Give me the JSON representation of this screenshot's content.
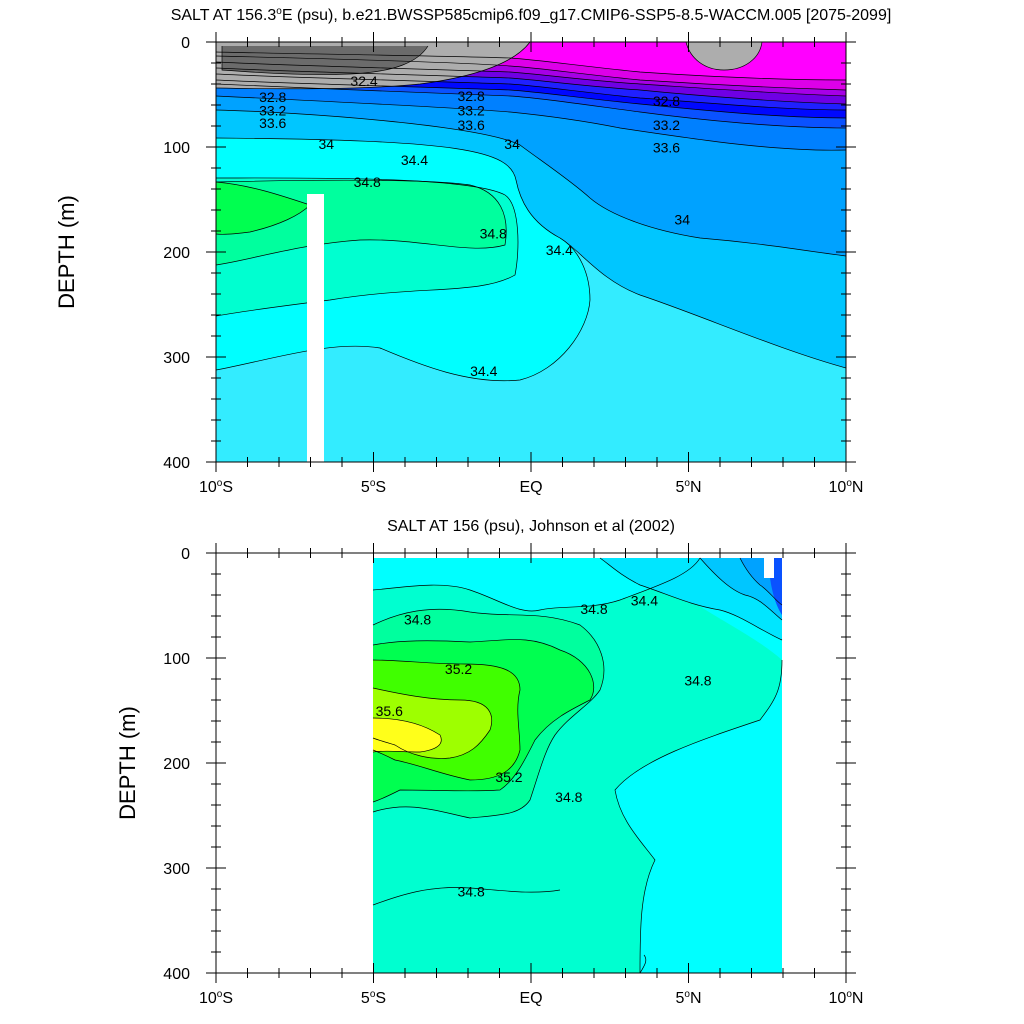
{
  "chart_data": [
    {
      "type": "contour",
      "title": "SALT AT 156.3°E (psu), b.e21.BWSSP585cmip6.f09_g17.CMIP6-SSP5-8.5-WACCM.005 [2075-2099]",
      "title_parts": {
        "pre": "SALT AT 156.3",
        "sup": "o",
        "post": "E (psu), b.e21.BWSSP585cmip6.f09_g17.CMIP6-SSP5-8.5-WACCM.005 [2075-2099]"
      },
      "xlabel": "",
      "ylabel": "DEPTH (m)",
      "xlim": [
        -10,
        10
      ],
      "ylim": [
        400,
        0
      ],
      "x_ticks": [
        {
          "value": -10,
          "pre": "10",
          "sup": "o",
          "post": "S"
        },
        {
          "value": -5,
          "pre": "5",
          "sup": "o",
          "post": "S"
        },
        {
          "value": 0,
          "pre": "EQ",
          "sup": "",
          "post": ""
        },
        {
          "value": 5,
          "pre": "5",
          "sup": "o",
          "post": "N"
        },
        {
          "value": 10,
          "pre": "10",
          "sup": "o",
          "post": "N"
        }
      ],
      "y_ticks": [
        0,
        100,
        200,
        300,
        400
      ],
      "data_extent": {
        "x": [
          -10,
          10
        ],
        "depth": [
          5,
          400
        ]
      },
      "contour_labels": [
        {
          "text": "32.4",
          "lat": -5.3,
          "depth": 42
        },
        {
          "text": "32.8",
          "lat": -8.2,
          "depth": 57
        },
        {
          "text": "33.2",
          "lat": -8.2,
          "depth": 70
        },
        {
          "text": "33.6",
          "lat": -8.2,
          "depth": 82
        },
        {
          "text": "32.8",
          "lat": -1.9,
          "depth": 56
        },
        {
          "text": "33.2",
          "lat": -1.9,
          "depth": 70
        },
        {
          "text": "33.6",
          "lat": -1.9,
          "depth": 84
        },
        {
          "text": "32.8",
          "lat": 4.3,
          "depth": 61
        },
        {
          "text": "33.2",
          "lat": 4.3,
          "depth": 84
        },
        {
          "text": "33.6",
          "lat": 4.3,
          "depth": 105
        },
        {
          "text": "34",
          "lat": -6.5,
          "depth": 102
        },
        {
          "text": "34",
          "lat": -0.6,
          "depth": 102
        },
        {
          "text": "34.4",
          "lat": -3.7,
          "depth": 117
        },
        {
          "text": "34.8",
          "lat": -5.2,
          "depth": 138
        },
        {
          "text": "34",
          "lat": 4.8,
          "depth": 174
        },
        {
          "text": "34.8",
          "lat": -1.2,
          "depth": 187
        },
        {
          "text": "34.4",
          "lat": 0.9,
          "depth": 203
        },
        {
          "text": "34.4",
          "lat": -1.5,
          "depth": 318
        }
      ]
    },
    {
      "type": "contour",
      "title": "SALT AT 156 (psu), Johnson et al (2002)",
      "title_parts": {
        "pre": "SALT AT 156 (psu), Johnson et al (2002)",
        "sup": "",
        "post": ""
      },
      "xlabel": "",
      "ylabel": "DEPTH (m)",
      "xlim": [
        -10,
        10
      ],
      "ylim": [
        400,
        0
      ],
      "x_ticks": [
        {
          "value": -10,
          "pre": "10",
          "sup": "o",
          "post": "S"
        },
        {
          "value": -5,
          "pre": "5",
          "sup": "o",
          "post": "S"
        },
        {
          "value": 0,
          "pre": "EQ",
          "sup": "",
          "post": ""
        },
        {
          "value": 5,
          "pre": "5",
          "sup": "o",
          "post": "N"
        },
        {
          "value": 10,
          "pre": "10",
          "sup": "o",
          "post": "N"
        }
      ],
      "y_ticks": [
        0,
        100,
        200,
        300,
        400
      ],
      "data_extent": {
        "x": [
          -5,
          8
        ],
        "depth": [
          5,
          400
        ]
      },
      "contour_labels": [
        {
          "text": "34.8",
          "lat": -3.6,
          "depth": 68
        },
        {
          "text": "34.8",
          "lat": 2.0,
          "depth": 58
        },
        {
          "text": "34.4",
          "lat": 3.6,
          "depth": 50
        },
        {
          "text": "35.2",
          "lat": -2.3,
          "depth": 115
        },
        {
          "text": "34.8",
          "lat": 5.3,
          "depth": 126
        },
        {
          "text": "35.6",
          "lat": -4.5,
          "depth": 155
        },
        {
          "text": "35.2",
          "lat": -0.7,
          "depth": 218
        },
        {
          "text": "34.8",
          "lat": 1.2,
          "depth": 237
        },
        {
          "text": "34.8",
          "lat": -1.9,
          "depth": 327
        }
      ]
    }
  ],
  "colors": {
    "c32_0": "#6b6b6b",
    "c32_4": "#adadad",
    "magenta": "#ff00ff",
    "m2": "#dd00e8",
    "m3": "#a600e6",
    "purple": "#6f00e4",
    "blue1": "#2020ff",
    "blue2": "#0008ff",
    "blue3": "#0a52ff",
    "b1": "#0080ff",
    "b2": "#00a2ff",
    "b3": "#00c6ff",
    "cyan": "#00e6ff",
    "cyan2": "#00ffff",
    "aqua": "#33ecff",
    "teal": "#00ffd0",
    "seagreen": "#00ff9e",
    "green": "#00ff50",
    "green2": "#40ff00",
    "lime": "#9eff00",
    "yellow": "#ffff1a"
  }
}
